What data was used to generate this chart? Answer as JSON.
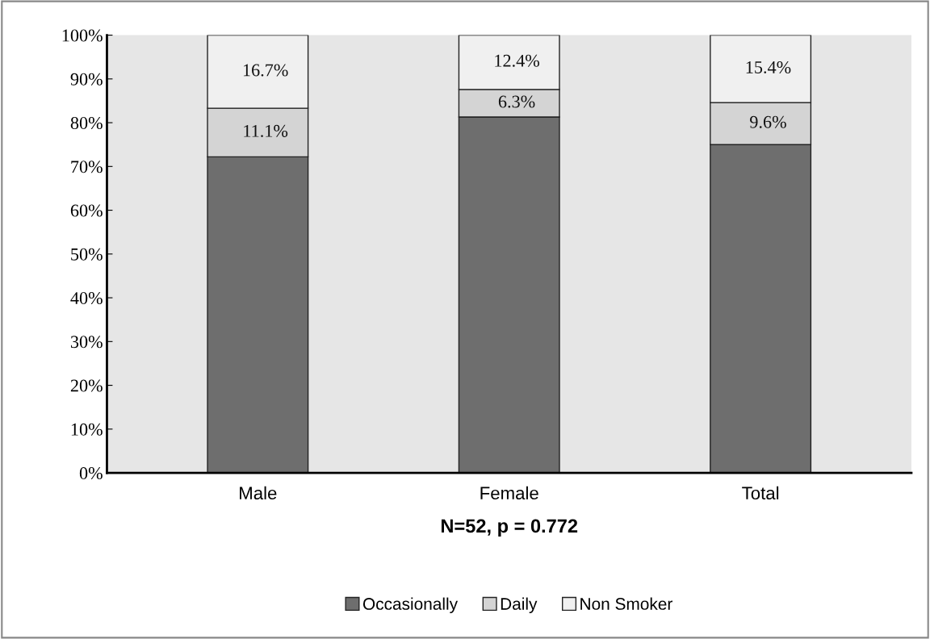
{
  "chart_data": {
    "type": "bar",
    "stacked": true,
    "xlabel": "N=52, p = 0.772",
    "categories": [
      "Male",
      "Female",
      "Total"
    ],
    "series": [
      {
        "name": "Occasionally",
        "color": "#6e6e6e",
        "values": [
          72.2,
          81.3,
          75.0
        ],
        "value_labels": [
          null,
          null,
          null
        ]
      },
      {
        "name": "Daily",
        "color": "#d4d4d4",
        "values": [
          11.1,
          6.3,
          9.6
        ],
        "value_labels": [
          "11.1%",
          "6.3%",
          "9.6%"
        ]
      },
      {
        "name": "Non Smoker",
        "color": "#f0f0f0",
        "values": [
          16.7,
          12.4,
          15.4
        ],
        "value_labels": [
          "16.7%",
          "12.4%",
          "15.4%"
        ]
      }
    ],
    "ylim": [
      0,
      100
    ],
    "yticks": [
      {
        "value": 0,
        "label": "0%"
      },
      {
        "value": 10,
        "label": "10%"
      },
      {
        "value": 20,
        "label": "20%"
      },
      {
        "value": 30,
        "label": "30%"
      },
      {
        "value": 40,
        "label": "40%"
      },
      {
        "value": 50,
        "label": "50%"
      },
      {
        "value": 60,
        "label": "60%"
      },
      {
        "value": 70,
        "label": "70%"
      },
      {
        "value": 80,
        "label": "80%"
      },
      {
        "value": 90,
        "label": "90%"
      },
      {
        "value": 100,
        "label": "100%"
      }
    ],
    "grid": false,
    "legend": "bottom"
  }
}
